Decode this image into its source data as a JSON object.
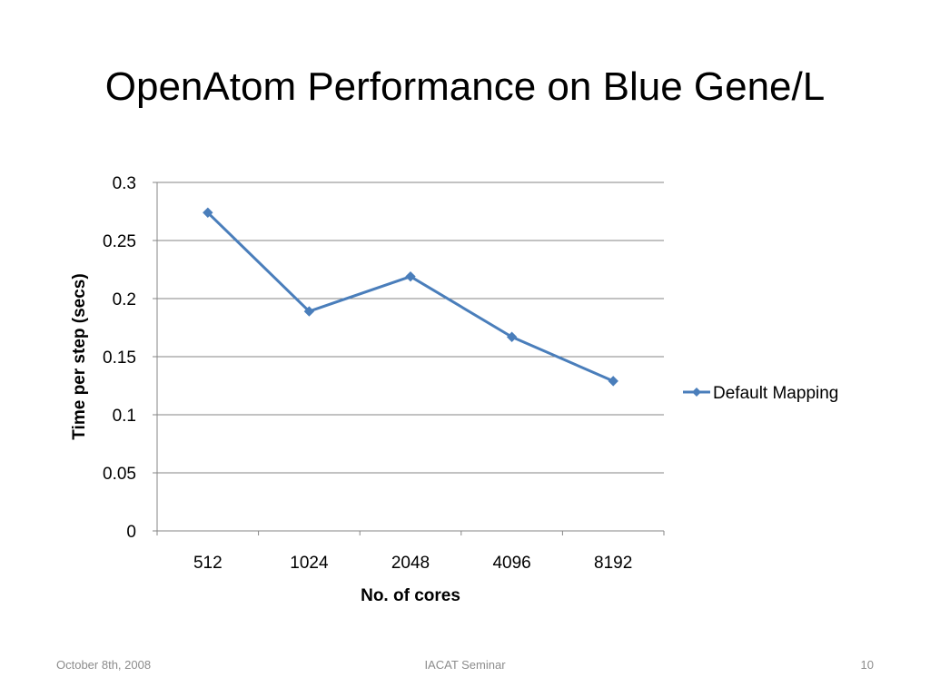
{
  "slide": {
    "title": "OpenAtom Performance on Blue Gene/L",
    "footer_date": "October 8th, 2008",
    "footer_center": "IACAT Seminar",
    "footer_page": "10"
  },
  "colors": {
    "series": "#4a7ebb",
    "gridline": "#868686",
    "text": "#000000",
    "footer": "#8c8c8c"
  },
  "chart_data": {
    "type": "line",
    "title": "",
    "xlabel": "No. of cores",
    "ylabel": "Time per step (secs)",
    "categories": [
      "512",
      "1024",
      "2048",
      "4096",
      "8192"
    ],
    "series": [
      {
        "name": "Default Mapping",
        "values": [
          0.274,
          0.189,
          0.219,
          0.167,
          0.129
        ],
        "marker": "diamond",
        "color": "#4a7ebb"
      }
    ],
    "ylim": [
      0,
      0.3
    ],
    "yticks": [
      "0",
      "0.05",
      "0.1",
      "0.15",
      "0.2",
      "0.25",
      "0.3"
    ],
    "grid": true,
    "legend_position": "right"
  }
}
